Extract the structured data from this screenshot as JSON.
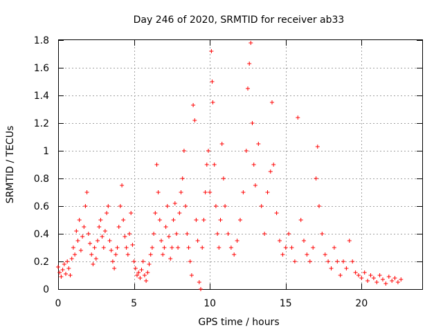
{
  "chart_data": {
    "type": "scatter",
    "title": "Day 246 of 2020, SRMTID for receiver ab33",
    "xlabel": "GPS time / hours",
    "ylabel": "SRMTID / TECUs",
    "xlim": [
      0,
      24
    ],
    "ylim": [
      0,
      1.8
    ],
    "xticks": [
      0,
      5,
      10,
      15,
      20
    ],
    "yticks": [
      0,
      0.2,
      0.4,
      0.6,
      0.8,
      1,
      1.2,
      1.4,
      1.6,
      1.8
    ],
    "xtick_labels": [
      "0",
      "5",
      "10",
      "15",
      "20"
    ],
    "ytick_labels": [
      "0",
      "0.2",
      "0.4",
      "0.6",
      "0.8",
      "1",
      "1.2",
      "1.4",
      "1.6",
      "1.8"
    ],
    "grid": true,
    "marker": "+",
    "series": [
      {
        "name": "SRMTID",
        "color": "#ff0000",
        "points": [
          [
            0.0,
            0.16
          ],
          [
            0.1,
            0.12
          ],
          [
            0.2,
            0.09
          ],
          [
            0.3,
            0.14
          ],
          [
            0.4,
            0.18
          ],
          [
            0.5,
            0.11
          ],
          [
            0.6,
            0.2
          ],
          [
            0.7,
            0.15
          ],
          [
            0.8,
            0.1
          ],
          [
            0.9,
            0.22
          ],
          [
            1.0,
            0.3
          ],
          [
            1.1,
            0.25
          ],
          [
            1.2,
            0.42
          ],
          [
            1.3,
            0.35
          ],
          [
            1.4,
            0.5
          ],
          [
            1.5,
            0.28
          ],
          [
            1.6,
            0.38
          ],
          [
            1.7,
            0.45
          ],
          [
            1.8,
            0.6
          ],
          [
            1.9,
            0.7
          ],
          [
            2.0,
            0.4
          ],
          [
            2.1,
            0.33
          ],
          [
            2.2,
            0.25
          ],
          [
            2.3,
            0.18
          ],
          [
            2.4,
            0.3
          ],
          [
            2.5,
            0.22
          ],
          [
            2.6,
            0.35
          ],
          [
            2.7,
            0.45
          ],
          [
            2.8,
            0.5
          ],
          [
            2.9,
            0.38
          ],
          [
            3.0,
            0.3
          ],
          [
            3.1,
            0.42
          ],
          [
            3.2,
            0.55
          ],
          [
            3.3,
            0.6
          ],
          [
            3.4,
            0.35
          ],
          [
            3.5,
            0.28
          ],
          [
            3.6,
            0.2
          ],
          [
            3.7,
            0.15
          ],
          [
            3.8,
            0.25
          ],
          [
            3.9,
            0.3
          ],
          [
            4.0,
            0.45
          ],
          [
            4.1,
            0.6
          ],
          [
            4.2,
            0.75
          ],
          [
            4.3,
            0.5
          ],
          [
            4.4,
            0.38
          ],
          [
            4.5,
            0.3
          ],
          [
            4.6,
            0.25
          ],
          [
            4.7,
            0.4
          ],
          [
            4.8,
            0.55
          ],
          [
            4.9,
            0.32
          ],
          [
            5.0,
            0.2
          ],
          [
            5.1,
            0.15
          ],
          [
            5.2,
            0.1
          ],
          [
            5.3,
            0.12
          ],
          [
            5.4,
            0.08
          ],
          [
            5.5,
            0.14
          ],
          [
            5.6,
            0.2
          ],
          [
            5.7,
            0.1
          ],
          [
            5.8,
            0.06
          ],
          [
            5.9,
            0.12
          ],
          [
            6.0,
            0.18
          ],
          [
            6.1,
            0.25
          ],
          [
            6.2,
            0.3
          ],
          [
            6.3,
            0.4
          ],
          [
            6.4,
            0.55
          ],
          [
            6.5,
            0.9
          ],
          [
            6.6,
            0.7
          ],
          [
            6.7,
            0.5
          ],
          [
            6.8,
            0.35
          ],
          [
            6.9,
            0.25
          ],
          [
            7.0,
            0.3
          ],
          [
            7.1,
            0.45
          ],
          [
            7.2,
            0.6
          ],
          [
            7.3,
            0.38
          ],
          [
            7.4,
            0.22
          ],
          [
            7.5,
            0.3
          ],
          [
            7.6,
            0.5
          ],
          [
            7.7,
            0.62
          ],
          [
            7.8,
            0.4
          ],
          [
            7.9,
            0.3
          ],
          [
            8.0,
            0.55
          ],
          [
            8.1,
            0.7
          ],
          [
            8.2,
            0.8
          ],
          [
            8.3,
            1.0
          ],
          [
            8.4,
            0.6
          ],
          [
            8.5,
            0.4
          ],
          [
            8.6,
            0.3
          ],
          [
            8.7,
            0.2
          ],
          [
            8.8,
            0.1
          ],
          [
            8.9,
            1.33
          ],
          [
            9.0,
            1.22
          ],
          [
            9.1,
            0.5
          ],
          [
            9.2,
            0.35
          ],
          [
            9.3,
            0.05
          ],
          [
            9.4,
            0.0
          ],
          [
            9.5,
            0.3
          ],
          [
            9.6,
            0.5
          ],
          [
            9.7,
            0.7
          ],
          [
            9.8,
            0.9
          ],
          [
            9.9,
            1.0
          ],
          [
            10.0,
            0.7
          ],
          [
            10.1,
            1.72
          ],
          [
            10.15,
            1.5
          ],
          [
            10.2,
            1.35
          ],
          [
            10.3,
            0.9
          ],
          [
            10.4,
            0.6
          ],
          [
            10.5,
            0.4
          ],
          [
            10.6,
            0.3
          ],
          [
            10.7,
            0.5
          ],
          [
            10.8,
            1.05
          ],
          [
            10.9,
            0.8
          ],
          [
            11.0,
            0.6
          ],
          [
            11.2,
            0.4
          ],
          [
            11.4,
            0.3
          ],
          [
            11.6,
            0.25
          ],
          [
            11.8,
            0.35
          ],
          [
            12.0,
            0.5
          ],
          [
            12.2,
            0.7
          ],
          [
            12.4,
            1.0
          ],
          [
            12.5,
            1.45
          ],
          [
            12.6,
            1.63
          ],
          [
            12.7,
            1.78
          ],
          [
            12.8,
            1.2
          ],
          [
            12.9,
            0.9
          ],
          [
            13.0,
            0.75
          ],
          [
            13.2,
            1.05
          ],
          [
            13.4,
            0.6
          ],
          [
            13.6,
            0.4
          ],
          [
            13.8,
            0.7
          ],
          [
            14.0,
            0.85
          ],
          [
            14.1,
            1.35
          ],
          [
            14.2,
            0.9
          ],
          [
            14.4,
            0.55
          ],
          [
            14.6,
            0.35
          ],
          [
            14.8,
            0.25
          ],
          [
            15.0,
            0.3
          ],
          [
            15.2,
            0.4
          ],
          [
            15.4,
            0.3
          ],
          [
            15.6,
            0.2
          ],
          [
            15.8,
            1.24
          ],
          [
            16.0,
            0.5
          ],
          [
            16.2,
            0.35
          ],
          [
            16.4,
            0.25
          ],
          [
            16.6,
            0.2
          ],
          [
            16.8,
            0.3
          ],
          [
            17.0,
            0.8
          ],
          [
            17.1,
            1.03
          ],
          [
            17.2,
            0.6
          ],
          [
            17.4,
            0.4
          ],
          [
            17.6,
            0.25
          ],
          [
            17.8,
            0.2
          ],
          [
            18.0,
            0.15
          ],
          [
            18.2,
            0.3
          ],
          [
            18.4,
            0.2
          ],
          [
            18.6,
            0.1
          ],
          [
            18.8,
            0.2
          ],
          [
            19.0,
            0.15
          ],
          [
            19.2,
            0.35
          ],
          [
            19.4,
            0.2
          ],
          [
            19.6,
            0.12
          ],
          [
            19.8,
            0.1
          ],
          [
            20.0,
            0.08
          ],
          [
            20.2,
            0.12
          ],
          [
            20.4,
            0.06
          ],
          [
            20.6,
            0.1
          ],
          [
            20.8,
            0.08
          ],
          [
            21.0,
            0.05
          ],
          [
            21.2,
            0.1
          ],
          [
            21.4,
            0.07
          ],
          [
            21.6,
            0.04
          ],
          [
            21.8,
            0.09
          ],
          [
            22.0,
            0.06
          ],
          [
            22.2,
            0.08
          ],
          [
            22.4,
            0.05
          ],
          [
            22.6,
            0.07
          ]
        ]
      }
    ]
  }
}
